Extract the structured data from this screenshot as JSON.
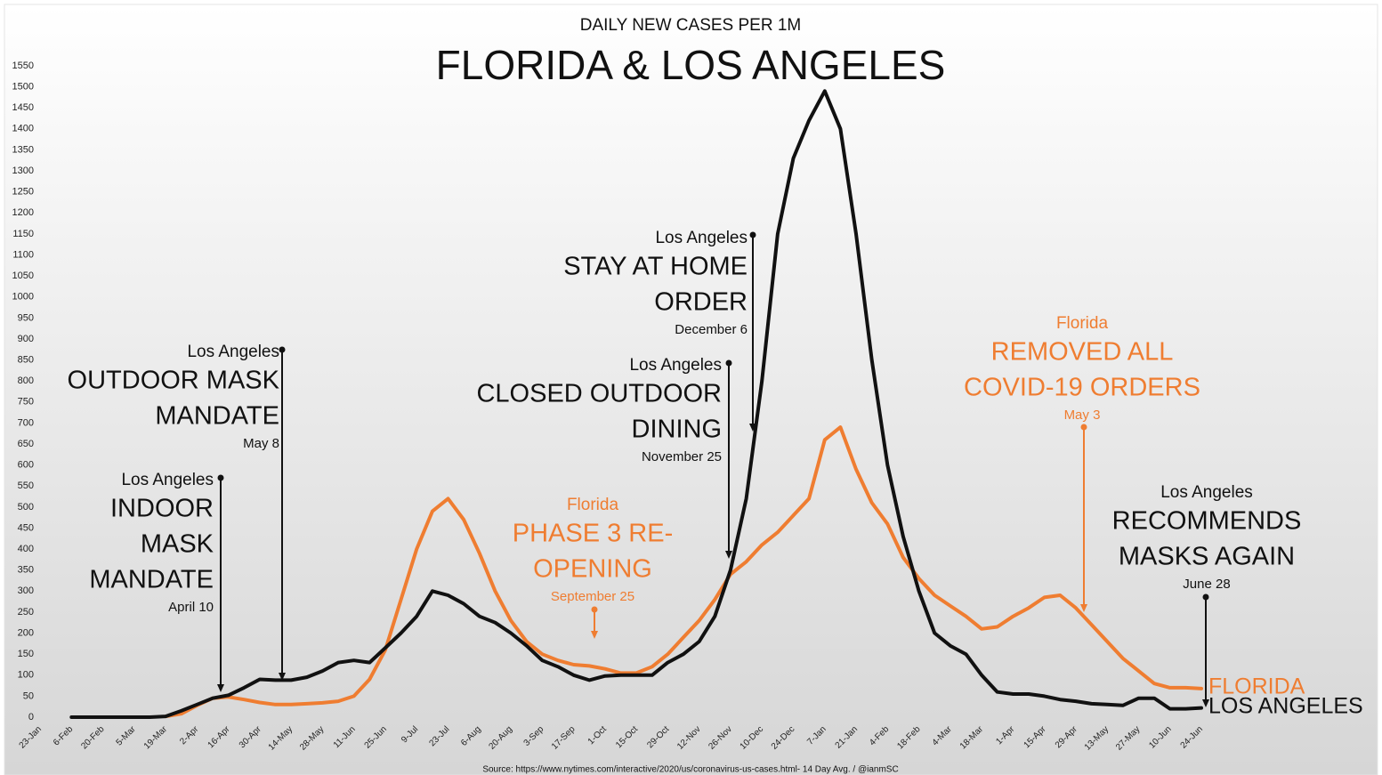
{
  "chart_data": {
    "type": "line",
    "subtitle": "DAILY NEW CASES PER 1M",
    "title": "FLORIDA & LOS ANGELES",
    "source": "Source: https://www.nytimes.com/interactive/2020/us/coronavirus-us-cases.html- 14 Day Avg. / @ianmSC",
    "categories": [
      "23-Jan",
      null,
      "6-Feb",
      null,
      "20-Feb",
      null,
      "5-Mar",
      null,
      "19-Mar",
      null,
      "2-Apr",
      null,
      "16-Apr",
      null,
      "30-Apr",
      null,
      "14-May",
      null,
      "28-May",
      null,
      "11-Jun",
      null,
      "25-Jun",
      null,
      "9-Jul",
      null,
      "23-Jul",
      null,
      "6-Aug",
      null,
      "20-Aug",
      null,
      "3-Sep",
      null,
      "17-Sep",
      null,
      "1-Oct",
      null,
      "15-Oct",
      null,
      "29-Oct",
      null,
      "12-Nov",
      null,
      "26-Nov",
      null,
      "10-Dec",
      null,
      "24-Dec",
      null,
      "7-Jan",
      null,
      "21-Jan",
      null,
      "4-Feb",
      null,
      "18-Feb",
      null,
      "4-Mar",
      null,
      "18-Mar",
      null,
      "1-Apr",
      null,
      "15-Apr",
      null,
      "29-Apr",
      null,
      "13-May",
      null,
      "27-May",
      null,
      "10-Jun",
      null,
      "24-Jun"
    ],
    "series": [
      {
        "name": "FLORIDA",
        "color": "#ef7d31",
        "values": [
          null,
          null,
          null,
          null,
          null,
          null,
          null,
          null,
          2,
          8,
          28,
          45,
          48,
          42,
          35,
          30,
          30,
          32,
          34,
          38,
          50,
          90,
          160,
          280,
          400,
          490,
          520,
          470,
          390,
          300,
          230,
          180,
          150,
          135,
          125,
          122,
          115,
          105,
          105,
          120,
          150,
          190,
          230,
          280,
          340,
          370,
          410,
          440,
          480,
          520,
          660,
          690,
          590,
          510,
          460,
          380,
          330,
          290,
          265,
          240,
          210,
          215,
          240,
          260,
          285,
          290,
          260,
          220,
          180,
          140,
          110,
          80,
          70,
          70,
          68
        ]
      },
      {
        "name": "LOS ANGELES",
        "color": "#111111",
        "values": [
          null,
          null,
          0,
          0,
          0,
          0,
          0,
          0,
          2,
          15,
          30,
          45,
          52,
          70,
          90,
          88,
          88,
          95,
          110,
          130,
          135,
          130,
          165,
          200,
          240,
          300,
          290,
          270,
          240,
          225,
          200,
          170,
          135,
          120,
          100,
          88,
          98,
          100,
          100,
          100,
          130,
          150,
          180,
          240,
          350,
          520,
          800,
          1150,
          1330,
          1420,
          1490,
          1400,
          1150,
          850,
          600,
          430,
          300,
          200,
          170,
          150,
          100,
          60,
          55,
          55,
          50,
          42,
          38,
          32,
          30,
          28,
          45,
          45,
          20,
          20,
          22
        ]
      }
    ],
    "ylim": [
      0,
      1550
    ],
    "yticks": [
      0,
      50,
      100,
      150,
      200,
      250,
      300,
      350,
      400,
      450,
      500,
      550,
      600,
      650,
      700,
      750,
      800,
      850,
      900,
      950,
      1000,
      1050,
      1100,
      1150,
      1200,
      1250,
      1300,
      1350,
      1400,
      1450,
      1500,
      1550
    ],
    "grid": false,
    "annotations": [
      {
        "location": "Los Angeles",
        "lines": [
          "INDOOR",
          "MASK",
          "MANDATE"
        ],
        "date": "April 10",
        "color": "#111111"
      },
      {
        "location": "Los Angeles",
        "lines": [
          "OUTDOOR MASK",
          "MANDATE"
        ],
        "date": "May 8",
        "color": "#111111"
      },
      {
        "location": "Los Angeles",
        "lines": [
          "CLOSED OUTDOOR",
          "DINING"
        ],
        "date": "November 25",
        "color": "#111111"
      },
      {
        "location": "Los Angeles",
        "lines": [
          "STAY AT HOME",
          "ORDER"
        ],
        "date": "December 6",
        "color": "#111111"
      },
      {
        "location": "Florida",
        "lines": [
          "PHASE 3 RE-",
          "OPENING"
        ],
        "date": "September 25",
        "color": "#ef7d31"
      },
      {
        "location": "Florida",
        "lines": [
          "REMOVED ALL",
          "COVID-19 ORDERS"
        ],
        "date": "May 3",
        "color": "#ef7d31"
      },
      {
        "location": "Los Angeles",
        "lines": [
          "RECOMMENDS",
          "MASKS AGAIN"
        ],
        "date": "June 28",
        "color": "#111111"
      }
    ]
  }
}
